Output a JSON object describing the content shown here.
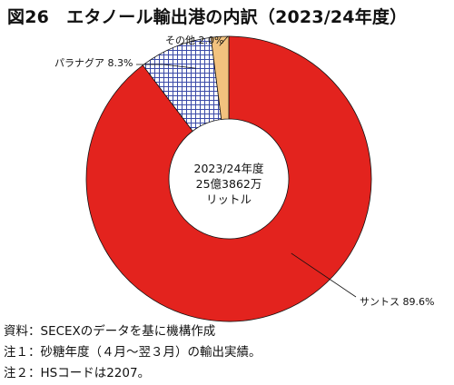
{
  "figure": {
    "title": "図26　エタノール輸出港の内訳（2023/24年度）"
  },
  "center_label": {
    "line1": "2023/24年度",
    "line2": "25億3862万",
    "line3": "リットル"
  },
  "notes": [
    "資料：SECEXのデータを基に機構作成",
    "注１：砂糖年度（４月～翌３月）の輸出実績。",
    "注２：HSコードは2207。"
  ],
  "colors": {
    "santos": "#e3231e",
    "paranagua_hatch": "#3b4aa8",
    "other": "#f2c27e"
  },
  "chart_data": {
    "type": "pie",
    "variant": "donut",
    "slices": [
      {
        "label": "サントス",
        "value": 89.6,
        "value_text": "89.6%",
        "color": "#e3231e",
        "fill": "solid"
      },
      {
        "label": "パラナグア",
        "value": 8.3,
        "value_text": "8.3%",
        "color": "#3b4aa8",
        "fill": "crosshatch"
      },
      {
        "label": "その他",
        "value": 2.0,
        "value_text": "2.0%",
        "color": "#f2c27e",
        "fill": "solid"
      }
    ],
    "start": "12 o'clock",
    "direction": "clockwise",
    "label_placement": "outside with leader lines"
  }
}
